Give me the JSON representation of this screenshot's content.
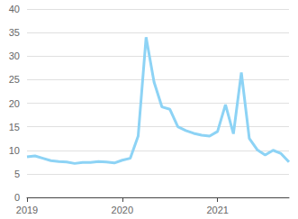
{
  "chart_data": {
    "type": "line",
    "categories": [
      "2019",
      null,
      null,
      null,
      null,
      null,
      null,
      null,
      null,
      null,
      null,
      null,
      "2020",
      null,
      null,
      null,
      null,
      null,
      null,
      null,
      null,
      null,
      null,
      null,
      "2021",
      null,
      null,
      null,
      null,
      null,
      null,
      null,
      null,
      null
    ],
    "values": [
      8.6,
      8.8,
      8.3,
      7.8,
      7.6,
      7.5,
      7.2,
      7.4,
      7.4,
      7.6,
      7.5,
      7.3,
      7.9,
      8.3,
      13,
      34,
      24.5,
      19.2,
      18.7,
      15,
      14.2,
      13.6,
      13.2,
      13,
      14,
      19.7,
      13.5,
      26.5,
      12.5,
      10.1,
      9,
      10,
      9.3,
      7.5
    ],
    "color": "#8dd3f5",
    "ylim": [
      0,
      40
    ],
    "yticks": [
      0,
      5,
      10,
      15,
      20,
      25,
      30,
      35,
      40
    ],
    "grid": true
  }
}
